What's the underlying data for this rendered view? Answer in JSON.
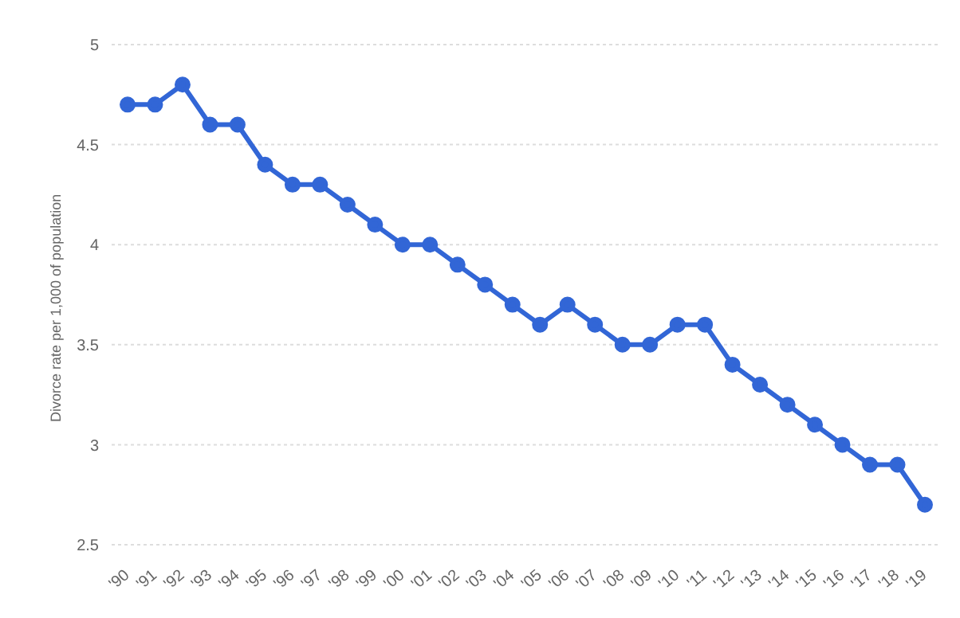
{
  "chart_data": {
    "type": "line",
    "ylabel": "Divorce rate per 1,000 of population",
    "categories": [
      "'90",
      "'91",
      "'92",
      "'93",
      "'94",
      "'95",
      "'96",
      "'97",
      "'98",
      "'99",
      "'00",
      "'01",
      "'02",
      "'03",
      "'04",
      "'05",
      "'06",
      "'07",
      "'08",
      "'09",
      "'10",
      "'11",
      "'12",
      "'13",
      "'14",
      "'15",
      "'16",
      "'17",
      "'18",
      "'19"
    ],
    "series": [
      {
        "color": "#3266d6",
        "values": [
          4.7,
          4.7,
          4.8,
          4.6,
          4.6,
          4.4,
          4.3,
          4.3,
          4.2,
          4.1,
          4.0,
          4.0,
          3.9,
          3.8,
          3.7,
          3.6,
          3.7,
          3.6,
          3.5,
          3.5,
          3.6,
          3.6,
          3.4,
          3.3,
          3.2,
          3.1,
          3.0,
          2.9,
          2.9,
          2.7
        ]
      }
    ],
    "ylim": [
      2.5,
      5
    ],
    "yticks": [
      2.5,
      3,
      3.5,
      4,
      4.5,
      5
    ],
    "grid": "y",
    "marker": "circle",
    "line_style": "solid",
    "legend": false
  }
}
